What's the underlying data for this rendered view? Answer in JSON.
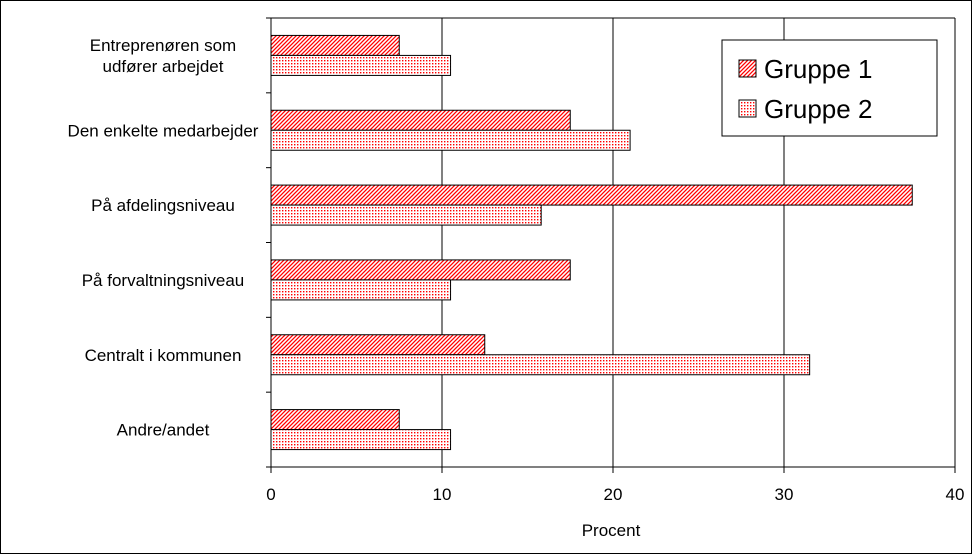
{
  "chart_data": {
    "type": "bar",
    "orientation": "horizontal",
    "categories": [
      [
        "Entreprenøren som",
        "udfører arbejdet"
      ],
      [
        "Den enkelte medarbejder"
      ],
      [
        "På afdelingsniveau"
      ],
      [
        "På forvaltningsniveau"
      ],
      [
        "Centralt i kommunen"
      ],
      [
        "Andre/andet"
      ]
    ],
    "series": [
      {
        "name": "Gruppe 1",
        "values": [
          7.5,
          17.5,
          37.5,
          17.5,
          12.5,
          7.5
        ],
        "color": "#ff0000",
        "pattern": "diagonal-hatch"
      },
      {
        "name": "Gruppe 2",
        "values": [
          10.5,
          21,
          15.8,
          10.5,
          31.5,
          10.5
        ],
        "color": "#ff0000",
        "pattern": "dots"
      }
    ],
    "xlabel": "Procent",
    "ylabel": "",
    "xlim": [
      0,
      40
    ],
    "xticks": [
      "0",
      "10",
      "20",
      "30",
      "40"
    ],
    "grid": "vertical",
    "legend": "top-right"
  }
}
